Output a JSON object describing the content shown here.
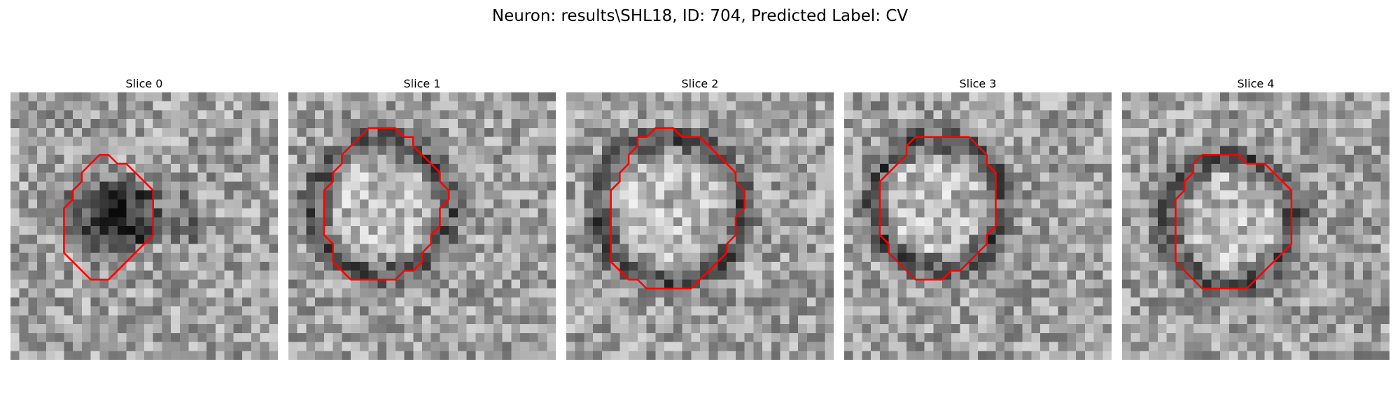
{
  "figure": {
    "title": "Neuron: results\\SHL18, ID: 704, Predicted Label: CV"
  },
  "panels": [
    {
      "title": "Slice 0",
      "blob": "dark",
      "contour": [
        [
          9,
          8
        ],
        [
          10,
          7
        ],
        [
          11,
          7
        ],
        [
          12,
          8
        ],
        [
          13,
          8
        ],
        [
          14,
          9
        ],
        [
          15,
          10
        ],
        [
          16,
          11
        ],
        [
          16,
          12
        ],
        [
          16,
          13
        ],
        [
          16,
          14
        ],
        [
          16,
          15
        ],
        [
          16,
          16
        ],
        [
          15,
          17
        ],
        [
          14,
          18
        ],
        [
          13,
          19
        ],
        [
          12,
          20
        ],
        [
          11,
          21
        ],
        [
          10,
          21
        ],
        [
          9,
          21
        ],
        [
          8,
          20
        ],
        [
          7,
          19
        ],
        [
          6,
          18
        ],
        [
          6,
          17
        ],
        [
          6,
          16
        ],
        [
          6,
          15
        ],
        [
          6,
          14
        ],
        [
          6,
          13
        ],
        [
          7,
          12
        ],
        [
          7,
          11
        ],
        [
          8,
          10
        ],
        [
          8,
          9
        ]
      ]
    },
    {
      "title": "Slice 1",
      "blob": "ring",
      "contour": [
        [
          8,
          5
        ],
        [
          9,
          4
        ],
        [
          10,
          4
        ],
        [
          11,
          4
        ],
        [
          12,
          4
        ],
        [
          13,
          5
        ],
        [
          14,
          5
        ],
        [
          14,
          6
        ],
        [
          15,
          7
        ],
        [
          16,
          8
        ],
        [
          17,
          9
        ],
        [
          17,
          10
        ],
        [
          18,
          11
        ],
        [
          18,
          12
        ],
        [
          17,
          13
        ],
        [
          17,
          14
        ],
        [
          17,
          15
        ],
        [
          16,
          16
        ],
        [
          16,
          17
        ],
        [
          15,
          18
        ],
        [
          15,
          19
        ],
        [
          14,
          20
        ],
        [
          13,
          20
        ],
        [
          12,
          21
        ],
        [
          11,
          21
        ],
        [
          10,
          21
        ],
        [
          9,
          21
        ],
        [
          8,
          21
        ],
        [
          7,
          21
        ],
        [
          6,
          20
        ],
        [
          5,
          19
        ],
        [
          5,
          18
        ],
        [
          5,
          17
        ],
        [
          4,
          16
        ],
        [
          4,
          15
        ],
        [
          4,
          14
        ],
        [
          4,
          13
        ],
        [
          4,
          12
        ],
        [
          4,
          11
        ],
        [
          5,
          10
        ],
        [
          5,
          9
        ],
        [
          6,
          8
        ],
        [
          6,
          7
        ],
        [
          7,
          6
        ]
      ]
    },
    {
      "title": "Slice 2",
      "blob": "ring",
      "contour": [
        [
          10,
          4
        ],
        [
          11,
          4
        ],
        [
          12,
          4
        ],
        [
          13,
          5
        ],
        [
          14,
          5
        ],
        [
          15,
          5
        ],
        [
          16,
          6
        ],
        [
          17,
          7
        ],
        [
          18,
          8
        ],
        [
          19,
          9
        ],
        [
          19,
          10
        ],
        [
          20,
          11
        ],
        [
          20,
          12
        ],
        [
          20,
          13
        ],
        [
          19,
          14
        ],
        [
          19,
          15
        ],
        [
          19,
          16
        ],
        [
          18,
          17
        ],
        [
          18,
          18
        ],
        [
          17,
          19
        ],
        [
          16,
          20
        ],
        [
          15,
          21
        ],
        [
          14,
          22
        ],
        [
          13,
          22
        ],
        [
          12,
          22
        ],
        [
          11,
          22
        ],
        [
          10,
          22
        ],
        [
          9,
          22
        ],
        [
          8,
          21
        ],
        [
          7,
          21
        ],
        [
          6,
          20
        ],
        [
          5,
          19
        ],
        [
          5,
          18
        ],
        [
          5,
          17
        ],
        [
          5,
          16
        ],
        [
          5,
          15
        ],
        [
          5,
          14
        ],
        [
          5,
          13
        ],
        [
          5,
          12
        ],
        [
          5,
          11
        ],
        [
          6,
          10
        ],
        [
          6,
          9
        ],
        [
          7,
          8
        ],
        [
          7,
          7
        ],
        [
          8,
          6
        ],
        [
          8,
          5
        ],
        [
          9,
          5
        ]
      ]
    },
    {
      "title": "Slice 3",
      "blob": "ring",
      "contour": [
        [
          8,
          5
        ],
        [
          9,
          5
        ],
        [
          10,
          5
        ],
        [
          11,
          5
        ],
        [
          12,
          5
        ],
        [
          13,
          5
        ],
        [
          14,
          5
        ],
        [
          15,
          6
        ],
        [
          16,
          7
        ],
        [
          16,
          8
        ],
        [
          17,
          9
        ],
        [
          17,
          10
        ],
        [
          17,
          11
        ],
        [
          17,
          12
        ],
        [
          17,
          13
        ],
        [
          17,
          14
        ],
        [
          17,
          15
        ],
        [
          16,
          16
        ],
        [
          16,
          17
        ],
        [
          15,
          18
        ],
        [
          14,
          19
        ],
        [
          13,
          20
        ],
        [
          12,
          20
        ],
        [
          11,
          21
        ],
        [
          10,
          21
        ],
        [
          9,
          21
        ],
        [
          8,
          21
        ],
        [
          7,
          20
        ],
        [
          6,
          19
        ],
        [
          5,
          18
        ],
        [
          5,
          17
        ],
        [
          4,
          16
        ],
        [
          4,
          15
        ],
        [
          4,
          14
        ],
        [
          4,
          13
        ],
        [
          4,
          12
        ],
        [
          4,
          11
        ],
        [
          4,
          10
        ],
        [
          5,
          9
        ],
        [
          6,
          8
        ],
        [
          7,
          7
        ],
        [
          7,
          6
        ]
      ]
    },
    {
      "title": "Slice 4",
      "blob": "ring",
      "contour": [
        [
          9,
          7
        ],
        [
          10,
          7
        ],
        [
          11,
          7
        ],
        [
          12,
          7
        ],
        [
          13,
          7
        ],
        [
          14,
          8
        ],
        [
          15,
          8
        ],
        [
          16,
          8
        ],
        [
          17,
          9
        ],
        [
          18,
          10
        ],
        [
          19,
          11
        ],
        [
          19,
          12
        ],
        [
          19,
          13
        ],
        [
          19,
          14
        ],
        [
          19,
          15
        ],
        [
          19,
          16
        ],
        [
          19,
          17
        ],
        [
          18,
          18
        ],
        [
          17,
          19
        ],
        [
          16,
          20
        ],
        [
          15,
          21
        ],
        [
          14,
          22
        ],
        [
          13,
          22
        ],
        [
          12,
          22
        ],
        [
          11,
          22
        ],
        [
          10,
          22
        ],
        [
          9,
          22
        ],
        [
          8,
          21
        ],
        [
          7,
          20
        ],
        [
          6,
          19
        ],
        [
          6,
          18
        ],
        [
          6,
          17
        ],
        [
          6,
          16
        ],
        [
          6,
          15
        ],
        [
          6,
          14
        ],
        [
          6,
          13
        ],
        [
          6,
          12
        ],
        [
          7,
          11
        ],
        [
          7,
          10
        ],
        [
          8,
          9
        ],
        [
          8,
          8
        ]
      ]
    }
  ],
  "colors": {
    "contour": "#ff0000"
  }
}
